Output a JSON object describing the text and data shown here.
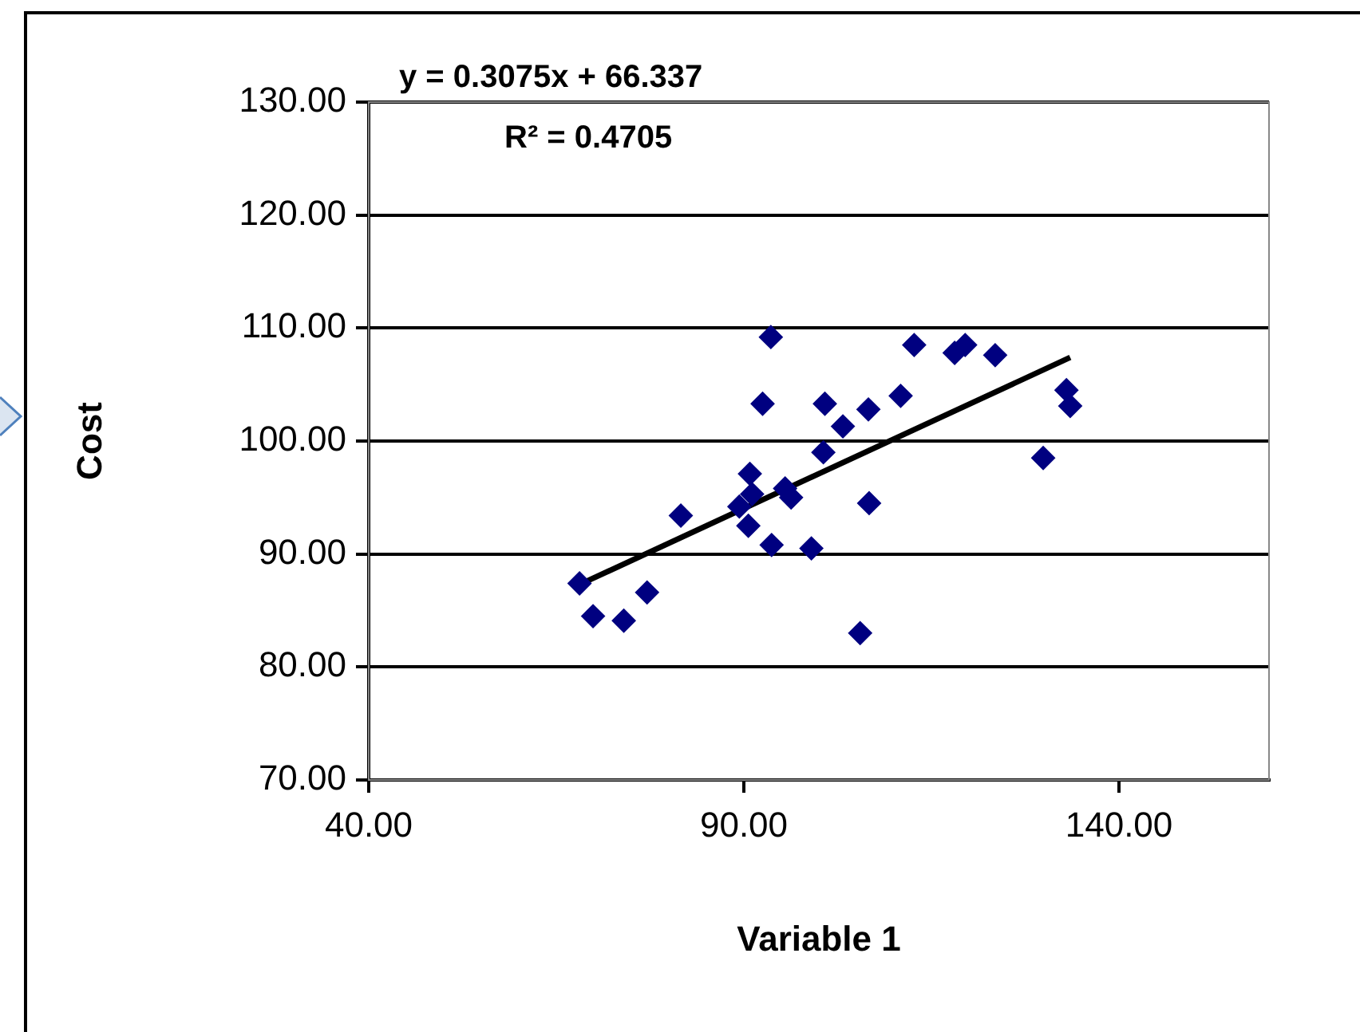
{
  "chart_data": {
    "type": "scatter",
    "xlabel": "Variable 1",
    "ylabel": "Cost",
    "annotations": [
      "y = 0.3075x + 66.337",
      "R² = 0.4705"
    ],
    "series": [
      {
        "marker": "diamond",
        "color": "#000080",
        "x": [
          68.1,
          69.9,
          74.0,
          77.1,
          81.6,
          89.4,
          90.8,
          91.1,
          90.6,
          93.6,
          92.5,
          93.7,
          96.3,
          95.5,
          99.0,
          100.8,
          100.6,
          103.2,
          106.6,
          106.7,
          105.5,
          110.9,
          112.7,
          118.1,
          119.5,
          123.5,
          129.9,
          133.0,
          133.5
        ],
        "values": [
          87.4,
          84.5,
          84.1,
          86.6,
          93.4,
          94.2,
          97.1,
          95.3,
          92.5,
          109.2,
          103.3,
          90.8,
          95.0,
          95.8,
          90.5,
          103.3,
          99.0,
          101.3,
          102.8,
          94.5,
          83.0,
          104.0,
          108.5,
          107.8,
          108.5,
          107.6,
          98.5,
          104.5,
          103.1
        ]
      },
      {
        "type": "line",
        "marker": "none",
        "color": "#000000",
        "x": [
          68.1,
          133.5
        ],
        "values": [
          87.3,
          107.4
        ]
      }
    ],
    "xlim": [
      40,
      160
    ],
    "xticks": [
      {
        "value": 40,
        "label": "40.00"
      },
      {
        "value": 90,
        "label": "90.00"
      },
      {
        "value": 140,
        "label": "140.00"
      }
    ],
    "ylim": [
      70,
      130
    ],
    "yticks": [
      {
        "value": 70,
        "label": "70.00"
      },
      {
        "value": 80,
        "label": "80.00"
      },
      {
        "value": 90,
        "label": "90.00"
      },
      {
        "value": 100,
        "label": "100.00"
      },
      {
        "value": 110,
        "label": "110.00"
      },
      {
        "value": 120,
        "label": "120.00"
      },
      {
        "value": 130,
        "label": "130.00"
      }
    ],
    "grid": "y",
    "legend": false,
    "line_style": "solid"
  }
}
